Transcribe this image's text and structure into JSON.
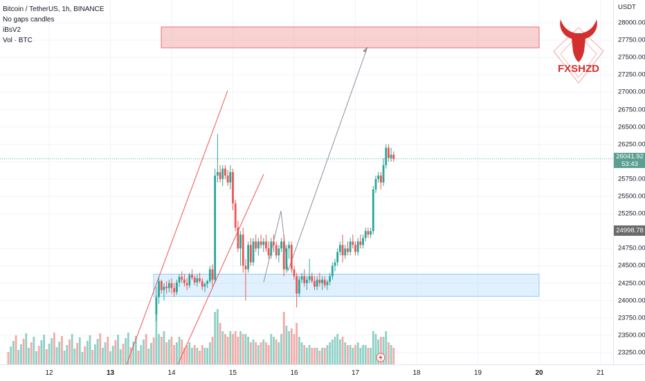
{
  "legend": {
    "title": "Bitcoin / TetherUS, 1h, BINANCE",
    "line2": "No gaps candles",
    "line3": "iBsV2",
    "line4": "Vol · BTC"
  },
  "price_scale": {
    "unit": "USDT",
    "ticks": [
      "28000.00",
      "27750.00",
      "27500.00",
      "27250.00",
      "27000.00",
      "26750.00",
      "26500.00",
      "26250.00",
      "26000.00",
      "25750.00",
      "25500.00",
      "25250.00",
      "24750.00",
      "24500.00",
      "24250.00",
      "24000.00",
      "23750.00",
      "23500.00",
      "23250.00"
    ],
    "current_price": "26041.92",
    "countdown": "53:43",
    "level_label": "24998.78",
    "current_color": "#5c9e92",
    "level_color": "#6b6b6b"
  },
  "time_axis": {
    "ticks": [
      {
        "label": "12",
        "bold": false
      },
      {
        "label": "13",
        "bold": true
      },
      {
        "label": "14",
        "bold": false
      },
      {
        "label": "15",
        "bold": false
      },
      {
        "label": "16",
        "bold": false
      },
      {
        "label": "17",
        "bold": false
      },
      {
        "label": "18",
        "bold": false
      },
      {
        "label": "19",
        "bold": false
      },
      {
        "label": "20",
        "bold": true
      },
      {
        "label": "21",
        "bold": false
      }
    ]
  },
  "logo": {
    "text": "FXSHZD",
    "color": "#d32f2f"
  },
  "colors": {
    "up": "#26a69a",
    "down": "#ef5350",
    "up_vol": "#8fd0c5",
    "down_vol": "#f4a9a6"
  },
  "zones": [
    {
      "name": "target-zone",
      "price_low": 27640,
      "price_high": 27940,
      "color": "#ef9a9a"
    },
    {
      "name": "demand-zone",
      "price_low": 24060,
      "price_high": 24380,
      "color": "#bbdefb"
    }
  ],
  "chart_data": {
    "type": "candlestick",
    "symbol": "Bitcoin / TetherUS",
    "interval": "1h",
    "ylim": [
      23150,
      28300
    ],
    "x_start_day": 13.75,
    "hours_per_candle": 1,
    "ohlc": [
      [
        23800,
        24200,
        23700,
        24050
      ],
      [
        24050,
        24350,
        23950,
        24280
      ],
      [
        24280,
        24300,
        24100,
        24150
      ],
      [
        24150,
        24250,
        24000,
        24200
      ],
      [
        24200,
        24280,
        24100,
        24180
      ],
      [
        24180,
        24300,
        24120,
        24250
      ],
      [
        24250,
        24320,
        24100,
        24180
      ],
      [
        24180,
        24250,
        24050,
        24120
      ],
      [
        24120,
        24300,
        24080,
        24260
      ],
      [
        24260,
        24380,
        24200,
        24340
      ],
      [
        24340,
        24420,
        24250,
        24300
      ],
      [
        24300,
        24380,
        24200,
        24250
      ],
      [
        24250,
        24320,
        24150,
        24220
      ],
      [
        24220,
        24400,
        24180,
        24370
      ],
      [
        24370,
        24450,
        24300,
        24330
      ],
      [
        24330,
        24360,
        24220,
        24260
      ],
      [
        24260,
        24380,
        24200,
        24320
      ],
      [
        24320,
        24400,
        24250,
        24280
      ],
      [
        24280,
        24320,
        24150,
        24200
      ],
      [
        24200,
        24260,
        24120,
        24240
      ],
      [
        24240,
        24300,
        24180,
        24280
      ],
      [
        24280,
        24500,
        24250,
        24450
      ],
      [
        24450,
        24520,
        24200,
        24300
      ],
      [
        24300,
        25900,
        24250,
        25800
      ],
      [
        25800,
        26400,
        25700,
        25850
      ],
      [
        25850,
        25950,
        25700,
        25750
      ],
      [
        25750,
        25950,
        25650,
        25900
      ],
      [
        25900,
        25950,
        25750,
        25800
      ],
      [
        25800,
        25880,
        25650,
        25700
      ],
      [
        25700,
        25950,
        25600,
        25850
      ],
      [
        25850,
        25900,
        25300,
        25400
      ],
      [
        25400,
        25450,
        25000,
        25050
      ],
      [
        25050,
        25150,
        24700,
        24750
      ],
      [
        24750,
        25000,
        24500,
        24950
      ],
      [
        24950,
        25050,
        24400,
        24500
      ],
      [
        24500,
        24600,
        24000,
        24450
      ],
      [
        24450,
        24850,
        24400,
        24800
      ],
      [
        24800,
        24900,
        24500,
        24550
      ],
      [
        24550,
        24900,
        24500,
        24850
      ],
      [
        24850,
        24950,
        24700,
        24750
      ],
      [
        24750,
        24900,
        24650,
        24850
      ],
      [
        24850,
        24950,
        24750,
        24800
      ],
      [
        24800,
        24900,
        24700,
        24850
      ],
      [
        24850,
        24950,
        24700,
        24750
      ],
      [
        24750,
        24850,
        24600,
        24650
      ],
      [
        24650,
        24900,
        24600,
        24850
      ],
      [
        24850,
        24950,
        24700,
        24800
      ],
      [
        24800,
        24850,
        24600,
        24650
      ],
      [
        24650,
        24800,
        24550,
        24750
      ],
      [
        24750,
        24900,
        24700,
        24850
      ],
      [
        24850,
        24950,
        24350,
        24450
      ],
      [
        24450,
        24800,
        24400,
        24750
      ],
      [
        24750,
        24850,
        24600,
        24800
      ],
      [
        24800,
        24850,
        24400,
        24450
      ],
      [
        24450,
        24500,
        24300,
        24350
      ],
      [
        24350,
        24400,
        23900,
        24100
      ],
      [
        24100,
        24350,
        24050,
        24300
      ],
      [
        24300,
        24400,
        24250,
        24350
      ],
      [
        24350,
        24450,
        24200,
        24250
      ],
      [
        24250,
        24350,
        24150,
        24300
      ],
      [
        24300,
        24600,
        24250,
        24350
      ],
      [
        24350,
        24400,
        24250,
        24280
      ],
      [
        24280,
        24350,
        24150,
        24200
      ],
      [
        24200,
        24350,
        24150,
        24300
      ],
      [
        24300,
        24400,
        24200,
        24250
      ],
      [
        24250,
        24350,
        24150,
        24300
      ],
      [
        24300,
        24350,
        24180,
        24220
      ],
      [
        24220,
        24300,
        24150,
        24270
      ],
      [
        24270,
        24400,
        24220,
        24350
      ],
      [
        24350,
        24550,
        24300,
        24500
      ],
      [
        24500,
        24600,
        24420,
        24550
      ],
      [
        24550,
        24750,
        24500,
        24700
      ],
      [
        24700,
        24850,
        24650,
        24800
      ],
      [
        24800,
        24950,
        24550,
        24650
      ],
      [
        24650,
        24800,
        24600,
        24750
      ],
      [
        24750,
        24850,
        24650,
        24700
      ],
      [
        24700,
        24900,
        24650,
        24850
      ],
      [
        24850,
        24950,
        24750,
        24800
      ],
      [
        24800,
        24850,
        24650,
        24700
      ],
      [
        24700,
        24900,
        24650,
        24850
      ],
      [
        24850,
        24950,
        24750,
        24800
      ],
      [
        24800,
        24950,
        24750,
        24900
      ],
      [
        24900,
        25050,
        24850,
        25000
      ],
      [
        25000,
        25050,
        24900,
        24950
      ],
      [
        24950,
        25050,
        24900,
        25000
      ],
      [
        25000,
        25650,
        24950,
        25600
      ],
      [
        25600,
        25800,
        25550,
        25750
      ],
      [
        25750,
        25850,
        25700,
        25800
      ],
      [
        25800,
        25850,
        25600,
        25700
      ],
      [
        25700,
        26050,
        25650,
        25950
      ],
      [
        25950,
        26250,
        25900,
        26200
      ],
      [
        26200,
        26250,
        26000,
        26050
      ],
      [
        26050,
        26200,
        26000,
        26100
      ],
      [
        26100,
        26150,
        26000,
        26042
      ]
    ],
    "volume": [
      [
        0.9,
        1
      ],
      [
        0.55,
        1
      ],
      [
        0.5,
        0
      ],
      [
        0.6,
        1
      ],
      [
        0.4,
        0
      ],
      [
        0.45,
        1
      ],
      [
        0.5,
        0
      ],
      [
        0.35,
        0
      ],
      [
        0.4,
        1
      ],
      [
        0.5,
        1
      ],
      [
        0.45,
        0
      ],
      [
        0.3,
        0
      ],
      [
        0.35,
        0
      ],
      [
        0.4,
        1
      ],
      [
        0.3,
        1
      ],
      [
        0.35,
        0
      ],
      [
        0.3,
        1
      ],
      [
        0.25,
        0
      ],
      [
        0.35,
        0
      ],
      [
        0.3,
        1
      ],
      [
        0.3,
        1
      ],
      [
        0.4,
        1
      ],
      [
        0.5,
        0
      ],
      [
        0.95,
        1
      ],
      [
        1.0,
        1
      ],
      [
        0.75,
        0
      ],
      [
        0.6,
        1
      ],
      [
        0.55,
        0
      ],
      [
        0.5,
        0
      ],
      [
        0.6,
        1
      ],
      [
        0.55,
        0
      ],
      [
        0.6,
        0
      ],
      [
        0.5,
        0
      ],
      [
        0.6,
        1
      ],
      [
        0.55,
        0
      ],
      [
        0.55,
        1
      ],
      [
        0.5,
        1
      ],
      [
        0.4,
        0
      ],
      [
        0.45,
        1
      ],
      [
        0.4,
        0
      ],
      [
        0.35,
        1
      ],
      [
        0.4,
        0
      ],
      [
        0.45,
        1
      ],
      [
        0.4,
        0
      ],
      [
        0.35,
        0
      ],
      [
        0.55,
        1
      ],
      [
        0.5,
        1
      ],
      [
        0.45,
        0
      ],
      [
        0.4,
        1
      ],
      [
        0.55,
        1
      ],
      [
        0.95,
        0
      ],
      [
        0.7,
        1
      ],
      [
        0.6,
        1
      ],
      [
        0.65,
        0
      ],
      [
        0.55,
        0
      ],
      [
        0.75,
        0
      ],
      [
        0.5,
        1
      ],
      [
        0.4,
        1
      ],
      [
        0.35,
        0
      ],
      [
        0.3,
        1
      ],
      [
        0.35,
        1
      ],
      [
        0.3,
        0
      ],
      [
        0.3,
        0
      ],
      [
        0.3,
        1
      ],
      [
        0.25,
        0
      ],
      [
        0.3,
        1
      ],
      [
        0.3,
        0
      ],
      [
        0.35,
        1
      ],
      [
        0.4,
        1
      ],
      [
        0.45,
        1
      ],
      [
        0.5,
        1
      ],
      [
        0.55,
        1
      ],
      [
        0.45,
        1
      ],
      [
        0.5,
        0
      ],
      [
        0.4,
        1
      ],
      [
        0.35,
        0
      ],
      [
        0.35,
        1
      ],
      [
        0.3,
        1
      ],
      [
        0.35,
        0
      ],
      [
        0.4,
        1
      ],
      [
        0.3,
        1
      ],
      [
        0.35,
        1
      ],
      [
        0.35,
        1
      ],
      [
        0.3,
        0
      ],
      [
        0.3,
        1
      ],
      [
        0.6,
        1
      ],
      [
        0.55,
        1
      ],
      [
        0.45,
        1
      ],
      [
        0.5,
        0
      ],
      [
        0.5,
        1
      ],
      [
        0.6,
        1
      ],
      [
        0.4,
        0
      ],
      [
        0.35,
        1
      ],
      [
        0.3,
        0
      ]
    ]
  }
}
